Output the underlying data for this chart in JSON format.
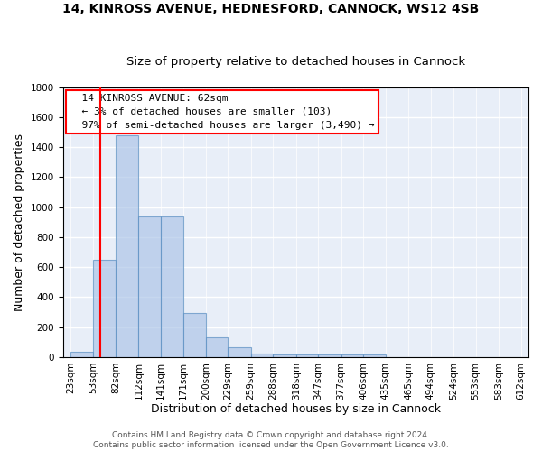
{
  "title1": "14, KINROSS AVENUE, HEDNESFORD, CANNOCK, WS12 4SB",
  "title2": "Size of property relative to detached houses in Cannock",
  "xlabel": "Distribution of detached houses by size in Cannock",
  "ylabel": "Number of detached properties",
  "bins": [
    23,
    53,
    82,
    112,
    141,
    171,
    200,
    229,
    259,
    288,
    318,
    347,
    377,
    406,
    435,
    465,
    494,
    524,
    553,
    583,
    612
  ],
  "bar_heights": [
    35,
    650,
    1480,
    935,
    935,
    295,
    130,
    65,
    25,
    20,
    15,
    15,
    20,
    15,
    0,
    0,
    0,
    0,
    0,
    0
  ],
  "bar_color": "#aec6e8",
  "bar_edge_color": "#5a8fc2",
  "bar_alpha": 0.7,
  "red_line_x": 62,
  "annotation_text": "  14 KINROSS AVENUE: 62sqm\n  ← 3% of detached houses are smaller (103)\n  97% of semi-detached houses are larger (3,490) →",
  "annotation_box_color": "white",
  "annotation_box_edge_color": "red",
  "ylim": [
    0,
    1800
  ],
  "yticks": [
    0,
    200,
    400,
    600,
    800,
    1000,
    1200,
    1400,
    1600,
    1800
  ],
  "background_color": "#e8eef8",
  "grid_color": "white",
  "footer_text": "Contains HM Land Registry data © Crown copyright and database right 2024.\nContains public sector information licensed under the Open Government Licence v3.0.",
  "title1_fontsize": 10,
  "title2_fontsize": 9.5,
  "xlabel_fontsize": 9,
  "ylabel_fontsize": 9,
  "tick_fontsize": 7.5,
  "annotation_fontsize": 8,
  "footer_fontsize": 6.5
}
